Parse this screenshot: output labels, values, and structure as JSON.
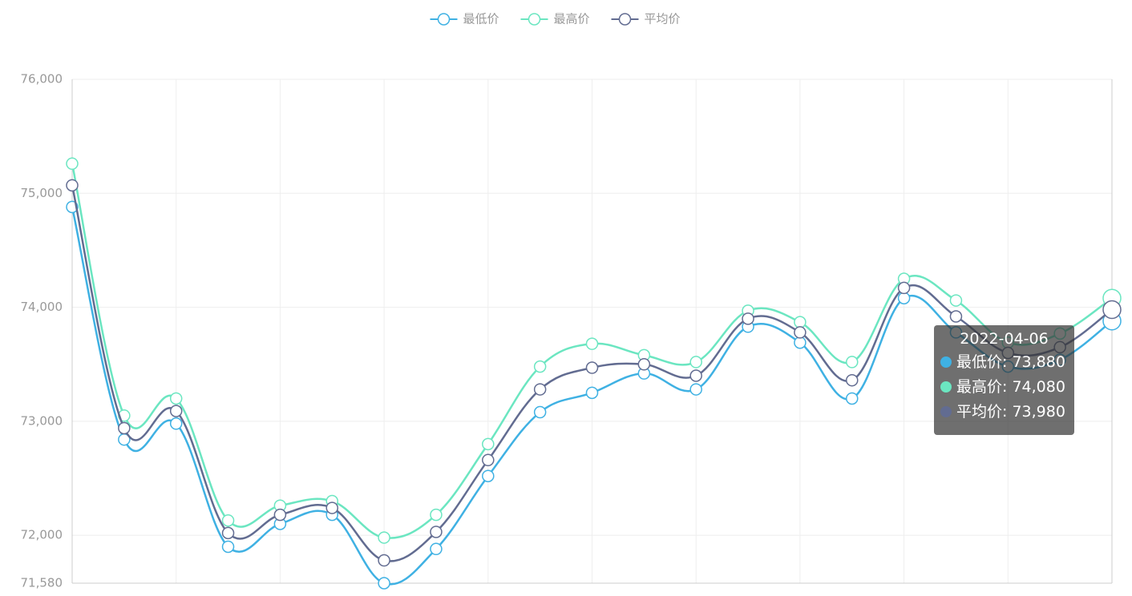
{
  "chart_data": {
    "type": "line",
    "categories": [
      null,
      null,
      null,
      null,
      null,
      null,
      null,
      null,
      null,
      null,
      null,
      null,
      null,
      null,
      null,
      null,
      null,
      null,
      null,
      null,
      "2022-04-06"
    ],
    "series": [
      {
        "name": "最低价",
        "color": "#3fb1e3",
        "values": [
          74880,
          72840,
          72980,
          71900,
          72100,
          72180,
          71580,
          71880,
          72520,
          73080,
          73250,
          73420,
          73280,
          73830,
          73690,
          73200,
          74080,
          73780,
          73480,
          73540,
          73880
        ]
      },
      {
        "name": "最高价",
        "color": "#6be6c1",
        "values": [
          75260,
          73050,
          73200,
          72130,
          72260,
          72300,
          71980,
          72180,
          72800,
          73480,
          73680,
          73580,
          73520,
          73970,
          73870,
          73520,
          74250,
          74060,
          73690,
          73770,
          74080
        ]
      },
      {
        "name": "平均价",
        "color": "#626c91",
        "values": [
          75070,
          72940,
          73090,
          72020,
          72180,
          72240,
          71780,
          72030,
          72660,
          73280,
          73470,
          73500,
          73400,
          73900,
          73780,
          73360,
          74170,
          73920,
          73600,
          73650,
          73980
        ]
      }
    ],
    "ylim": [
      71580,
      76000
    ],
    "yticks": [
      {
        "value": 71580,
        "label": "71,580"
      },
      {
        "value": 72000,
        "label": "72,000"
      },
      {
        "value": 73000,
        "label": "73,000"
      },
      {
        "value": 74000,
        "label": "74,000"
      },
      {
        "value": 75000,
        "label": "75,000"
      },
      {
        "value": 76000,
        "label": "76,000"
      }
    ],
    "grid": true,
    "smooth": true,
    "legend": "top",
    "tooltip": {
      "value_labels": [
        "73,880",
        "74,080",
        "73,980"
      ]
    }
  }
}
